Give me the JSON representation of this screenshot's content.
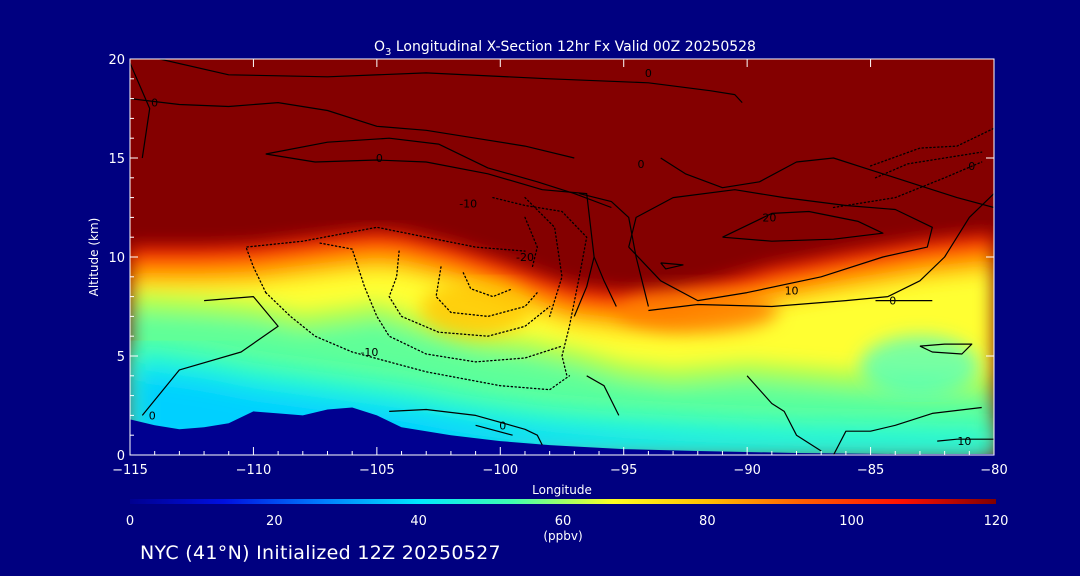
{
  "chart_data": {
    "type": "heatmap",
    "title_prefix": "O",
    "title_subscript": "3",
    "title_rest": " Longitudinal X-Section 12hr  Fx Valid 00Z 20250528",
    "xlabel": "Longitude",
    "ylabel": "Altitude (km)",
    "xlim": [
      -115,
      -80
    ],
    "ylim": [
      0,
      20
    ],
    "x_ticks": [
      -115,
      -110,
      -105,
      -100,
      -95,
      -90,
      -85,
      -80
    ],
    "x_tick_labels": [
      "−115",
      "−110",
      "−105",
      "−100",
      "−95",
      "−90",
      "−85",
      "−80"
    ],
    "y_ticks": [
      0,
      5,
      10,
      15,
      20
    ],
    "y_tick_labels": [
      "0",
      "5",
      "10",
      "15",
      "20"
    ],
    "colorbar": {
      "min": 0,
      "max": 120,
      "ticks": [
        0,
        20,
        40,
        60,
        80,
        100,
        120
      ],
      "tick_labels": [
        "0",
        "20",
        "40",
        "60",
        "80",
        "100",
        "120"
      ],
      "unit_label": "(ppbv)",
      "stops": [
        {
          "v": 0,
          "color": "#000090"
        },
        {
          "v": 13,
          "color": "#0010e0"
        },
        {
          "v": 27,
          "color": "#0080ff"
        },
        {
          "v": 40,
          "color": "#00e8ff"
        },
        {
          "v": 53,
          "color": "#40ffb0"
        },
        {
          "v": 67,
          "color": "#ffff20"
        },
        {
          "v": 80,
          "color": "#ffc000"
        },
        {
          "v": 93,
          "color": "#ff6000"
        },
        {
          "v": 107,
          "color": "#ff1000"
        },
        {
          "v": 120,
          "color": "#800000"
        }
      ]
    },
    "terrain_km": [
      [
        -115,
        1.8
      ],
      [
        -114,
        1.5
      ],
      [
        -113,
        1.3
      ],
      [
        -112,
        1.4
      ],
      [
        -111,
        1.6
      ],
      [
        -110,
        2.2
      ],
      [
        -109,
        2.1
      ],
      [
        -108,
        2.0
      ],
      [
        -107,
        2.3
      ],
      [
        -106,
        2.4
      ],
      [
        -105,
        2.0
      ],
      [
        -104,
        1.4
      ],
      [
        -102,
        1.0
      ],
      [
        -100,
        0.7
      ],
      [
        -98,
        0.5
      ],
      [
        -95,
        0.3
      ],
      [
        -92,
        0.2
      ],
      [
        -88,
        0.1
      ],
      [
        -84,
        0.05
      ],
      [
        -80,
        0.05
      ]
    ],
    "tropopause_km": [
      [
        -115,
        10.5
      ],
      [
        -112,
        10.5
      ],
      [
        -110,
        10.6
      ],
      [
        -108,
        10.9
      ],
      [
        -106,
        11.2
      ],
      [
        -105,
        11.3
      ],
      [
        -104,
        11.2
      ],
      [
        -102,
        10.6
      ],
      [
        -100,
        9.8
      ],
      [
        -98,
        8.9
      ],
      [
        -97,
        8.5
      ],
      [
        -95,
        8.2
      ],
      [
        -93,
        8.2
      ],
      [
        -91,
        8.8
      ],
      [
        -89,
        9.5
      ],
      [
        -86,
        10.2
      ],
      [
        -83,
        10.8
      ],
      [
        -80,
        11.2
      ]
    ],
    "lower_bands": {
      "lower_boundary_km": [
        [
          -115,
          8.2
        ],
        [
          -112,
          8.0
        ],
        [
          -110,
          7.8
        ],
        [
          -108,
          7.3
        ],
        [
          -106,
          7.6
        ],
        [
          -105,
          7.8
        ],
        [
          -103,
          7.0
        ],
        [
          -101,
          6.3
        ],
        [
          -99,
          6.0
        ],
        [
          -97,
          5.5
        ],
        [
          -95,
          4.8
        ],
        [
          -93,
          4.5
        ],
        [
          -90,
          4.8
        ],
        [
          -87,
          4.5
        ],
        [
          -84,
          4.2
        ],
        [
          -80,
          4.0
        ]
      ],
      "upper_boundary_km": [
        [
          -115,
          5.5
        ],
        [
          -112,
          5.0
        ],
        [
          -110,
          4.5
        ],
        [
          -107,
          4.0
        ],
        [
          -104,
          3.5
        ],
        [
          -101,
          2.8
        ],
        [
          -98,
          2.3
        ],
        [
          -95,
          2.0
        ],
        [
          -92,
          1.8
        ],
        [
          -88,
          1.6
        ],
        [
          -84,
          1.5
        ],
        [
          -80,
          1.4
        ]
      ]
    },
    "contour_labels": [
      {
        "text": "0",
        "lon": -114,
        "alt": 17.8
      },
      {
        "text": "0",
        "lon": -94,
        "alt": 19.3
      },
      {
        "text": "0",
        "lon": -104.9,
        "alt": 15.0
      },
      {
        "text": "0",
        "lon": -94.3,
        "alt": 14.7
      },
      {
        "text": "0",
        "lon": -80.9,
        "alt": 14.6
      },
      {
        "text": "-10",
        "lon": -101.3,
        "alt": 12.7
      },
      {
        "text": "-20",
        "lon": -99.0,
        "alt": 10.0
      },
      {
        "text": "20",
        "lon": -89.1,
        "alt": 12.0
      },
      {
        "text": "10",
        "lon": -88.2,
        "alt": 8.3
      },
      {
        "text": "0",
        "lon": -84.1,
        "alt": 7.8
      },
      {
        "text": "-10",
        "lon": -105.3,
        "alt": 5.2
      },
      {
        "text": "0",
        "lon": -99.9,
        "alt": 1.5
      },
      {
        "text": "0",
        "lon": -114.1,
        "alt": 2.0
      },
      {
        "text": "10",
        "lon": -81.2,
        "alt": 0.7
      }
    ],
    "solid_contours": [
      [
        [
          -113.8,
          20.0
        ],
        [
          -111,
          19.2
        ],
        [
          -107,
          19.1
        ],
        [
          -103,
          19.3
        ],
        [
          -98,
          19.0
        ],
        [
          -94,
          18.8
        ],
        [
          -91.5,
          18.4
        ],
        [
          -90.5,
          18.2
        ],
        [
          -90.2,
          17.8
        ]
      ],
      [
        [
          -115,
          18.0
        ],
        [
          -113,
          17.7
        ],
        [
          -111,
          17.6
        ],
        [
          -109,
          17.8
        ],
        [
          -107,
          17.4
        ],
        [
          -105,
          16.6
        ],
        [
          -103,
          16.4
        ],
        [
          -101,
          16.0
        ],
        [
          -99,
          15.6
        ],
        [
          -97,
          15.0
        ]
      ],
      [
        [
          -115,
          19.8
        ],
        [
          -114.2,
          17.5
        ],
        [
          -114.5,
          15.0
        ]
      ],
      [
        [
          -109.5,
          15.2
        ],
        [
          -107,
          15.8
        ],
        [
          -104.5,
          16.0
        ],
        [
          -102.5,
          15.7
        ],
        [
          -100.5,
          14.5
        ],
        [
          -98.5,
          13.8
        ],
        [
          -97,
          13.2
        ],
        [
          -95.5,
          12.5
        ]
      ],
      [
        [
          -109.5,
          15.2
        ],
        [
          -107.5,
          14.8
        ],
        [
          -105,
          14.9
        ],
        [
          -103,
          14.8
        ],
        [
          -100.5,
          14.2
        ],
        [
          -98.3,
          13.4
        ],
        [
          -96.5,
          13.2
        ],
        [
          -96.2,
          10.0
        ],
        [
          -96.5,
          8.5
        ],
        [
          -97,
          7.0
        ]
      ],
      [
        [
          -96.2,
          10.0
        ],
        [
          -95.8,
          8.8
        ],
        [
          -95.3,
          7.5
        ]
      ],
      [
        [
          -96.8,
          13.2
        ],
        [
          -95.5,
          12.8
        ],
        [
          -94.8,
          12.0
        ],
        [
          -94.5,
          10.0
        ],
        [
          -94.2,
          8.5
        ],
        [
          -94,
          7.5
        ]
      ],
      [
        [
          -93.5,
          15.0
        ],
        [
          -92.5,
          14.2
        ],
        [
          -91,
          13.5
        ],
        [
          -89.5,
          13.8
        ],
        [
          -88,
          14.8
        ],
        [
          -86.5,
          15.0
        ],
        [
          -85,
          14.4
        ],
        [
          -83,
          13.6
        ],
        [
          -81.5,
          13.0
        ],
        [
          -80,
          12.5
        ]
      ],
      [
        [
          -94.8,
          10.5
        ],
        [
          -94.5,
          12.0
        ],
        [
          -93,
          13.0
        ],
        [
          -90.5,
          13.4
        ],
        [
          -88.5,
          13.0
        ],
        [
          -86,
          12.6
        ],
        [
          -84,
          12.4
        ],
        [
          -82.5,
          11.5
        ],
        [
          -82.7,
          10.5
        ],
        [
          -84.5,
          10.0
        ],
        [
          -87,
          9.0
        ],
        [
          -90,
          8.2
        ],
        [
          -92,
          7.8
        ],
        [
          -93.5,
          8.8
        ],
        [
          -94.8,
          10.5
        ]
      ],
      [
        [
          -91,
          11.0
        ],
        [
          -89,
          12.2
        ],
        [
          -87.5,
          12.3
        ],
        [
          -85.5,
          11.8
        ],
        [
          -84.5,
          11.2
        ],
        [
          -86.5,
          10.9
        ],
        [
          -89,
          10.8
        ],
        [
          -91,
          11.0
        ]
      ],
      [
        [
          -93.5,
          9.7
        ],
        [
          -92.6,
          9.6
        ],
        [
          -93.3,
          9.4
        ],
        [
          -93.5,
          9.7
        ]
      ],
      [
        [
          -80,
          13.2
        ],
        [
          -81,
          12.0
        ],
        [
          -82,
          10.0
        ],
        [
          -83,
          8.8
        ],
        [
          -84.3,
          8.0
        ],
        [
          -86,
          7.8
        ],
        [
          -89,
          7.5
        ],
        [
          -92,
          7.6
        ],
        [
          -94,
          7.3
        ]
      ],
      [
        [
          -84.8,
          7.8
        ],
        [
          -83,
          7.8
        ],
        [
          -82.5,
          7.8
        ]
      ],
      [
        [
          -112,
          7.8
        ],
        [
          -110,
          8.0
        ],
        [
          -109,
          6.5
        ],
        [
          -110.5,
          5.2
        ],
        [
          -113,
          4.3
        ],
        [
          -114.5,
          2.0
        ]
      ],
      [
        [
          -90,
          4.0
        ],
        [
          -89,
          2.6
        ],
        [
          -88.5,
          2.2
        ],
        [
          -88,
          1.0
        ],
        [
          -87,
          0.2
        ]
      ],
      [
        [
          -104.5,
          2.2
        ],
        [
          -103,
          2.3
        ],
        [
          -101,
          2.0
        ],
        [
          -99,
          1.3
        ],
        [
          -98.5,
          1.0
        ],
        [
          -98.3,
          0.5
        ]
      ],
      [
        [
          -101,
          1.5
        ],
        [
          -99.5,
          1.0
        ]
      ],
      [
        [
          -83,
          5.5
        ],
        [
          -82.5,
          5.2
        ],
        [
          -81.3,
          5.1
        ],
        [
          -80.9,
          5.6
        ],
        [
          -82,
          5.6
        ],
        [
          -83,
          5.5
        ]
      ],
      [
        [
          -80.5,
          2.4
        ],
        [
          -82.5,
          2.1
        ],
        [
          -84,
          1.5
        ],
        [
          -85,
          1.2
        ],
        [
          -86,
          1.2
        ],
        [
          -86.5,
          0.0
        ]
      ],
      [
        [
          -80,
          0.8
        ],
        [
          -81.5,
          0.8
        ],
        [
          -82.3,
          0.7
        ]
      ],
      [
        [
          -96.5,
          4.0
        ],
        [
          -95.8,
          3.5
        ],
        [
          -95.2,
          2.0
        ]
      ]
    ],
    "dotted_contours": [
      [
        [
          -109.5,
          8.2
        ],
        [
          -110,
          9.5
        ],
        [
          -110.3,
          10.5
        ],
        [
          -108,
          10.8
        ],
        [
          -105,
          11.5
        ],
        [
          -103,
          11.0
        ],
        [
          -101,
          10.5
        ],
        [
          -99,
          10.3
        ]
      ],
      [
        [
          -109.5,
          8.2
        ],
        [
          -108.5,
          7.0
        ],
        [
          -107.5,
          6.0
        ],
        [
          -106,
          5.2
        ],
        [
          -103,
          4.2
        ],
        [
          -100,
          3.5
        ],
        [
          -98,
          3.3
        ],
        [
          -97.2,
          4.0
        ]
      ],
      [
        [
          -107.3,
          10.7
        ],
        [
          -106,
          10.4
        ],
        [
          -105.5,
          8.5
        ],
        [
          -105,
          7.0
        ],
        [
          -104.5,
          6.0
        ],
        [
          -103,
          5.1
        ],
        [
          -101,
          4.7
        ],
        [
          -99,
          4.9
        ],
        [
          -97.5,
          5.5
        ]
      ],
      [
        [
          -104.1,
          10.3
        ],
        [
          -104.2,
          9.0
        ],
        [
          -104.5,
          8.0
        ],
        [
          -104,
          7.0
        ],
        [
          -102.5,
          6.2
        ],
        [
          -100.5,
          6.0
        ],
        [
          -99,
          6.5
        ],
        [
          -98,
          7.5
        ]
      ],
      [
        [
          -102.4,
          9.5
        ],
        [
          -102.6,
          8.0
        ],
        [
          -102,
          7.2
        ],
        [
          -100.5,
          7.0
        ],
        [
          -99,
          7.5
        ],
        [
          -98.5,
          8.2
        ]
      ],
      [
        [
          -101.5,
          9.2
        ],
        [
          -101.2,
          8.4
        ],
        [
          -100.3,
          8.0
        ],
        [
          -99.5,
          8.4
        ]
      ],
      [
        [
          -100.3,
          13.0
        ],
        [
          -99,
          12.6
        ],
        [
          -97.5,
          12.3
        ],
        [
          -96.5,
          11.0
        ],
        [
          -96.8,
          9.0
        ],
        [
          -97.2,
          6.5
        ],
        [
          -97.5,
          5.0
        ],
        [
          -97.3,
          4.0
        ]
      ],
      [
        [
          -99,
          13.0
        ],
        [
          -97.8,
          11.5
        ],
        [
          -97.5,
          9.0
        ],
        [
          -98,
          7.0
        ]
      ],
      [
        [
          -99,
          12.0
        ],
        [
          -98.5,
          10.5
        ],
        [
          -98.7,
          9.5
        ]
      ],
      [
        [
          -86.5,
          12.5
        ],
        [
          -84,
          13.0
        ],
        [
          -82,
          14.0
        ],
        [
          -80.5,
          14.8
        ]
      ],
      [
        [
          -85,
          14.6
        ],
        [
          -83,
          15.5
        ],
        [
          -81.5,
          15.6
        ],
        [
          -80,
          16.5
        ]
      ],
      [
        [
          -84.8,
          14.0
        ],
        [
          -83.5,
          14.7
        ],
        [
          -82,
          15.0
        ],
        [
          -80.5,
          15.3
        ]
      ]
    ]
  },
  "footer": {
    "text": "NYC (41°N) Initialized 12Z 20250527"
  }
}
